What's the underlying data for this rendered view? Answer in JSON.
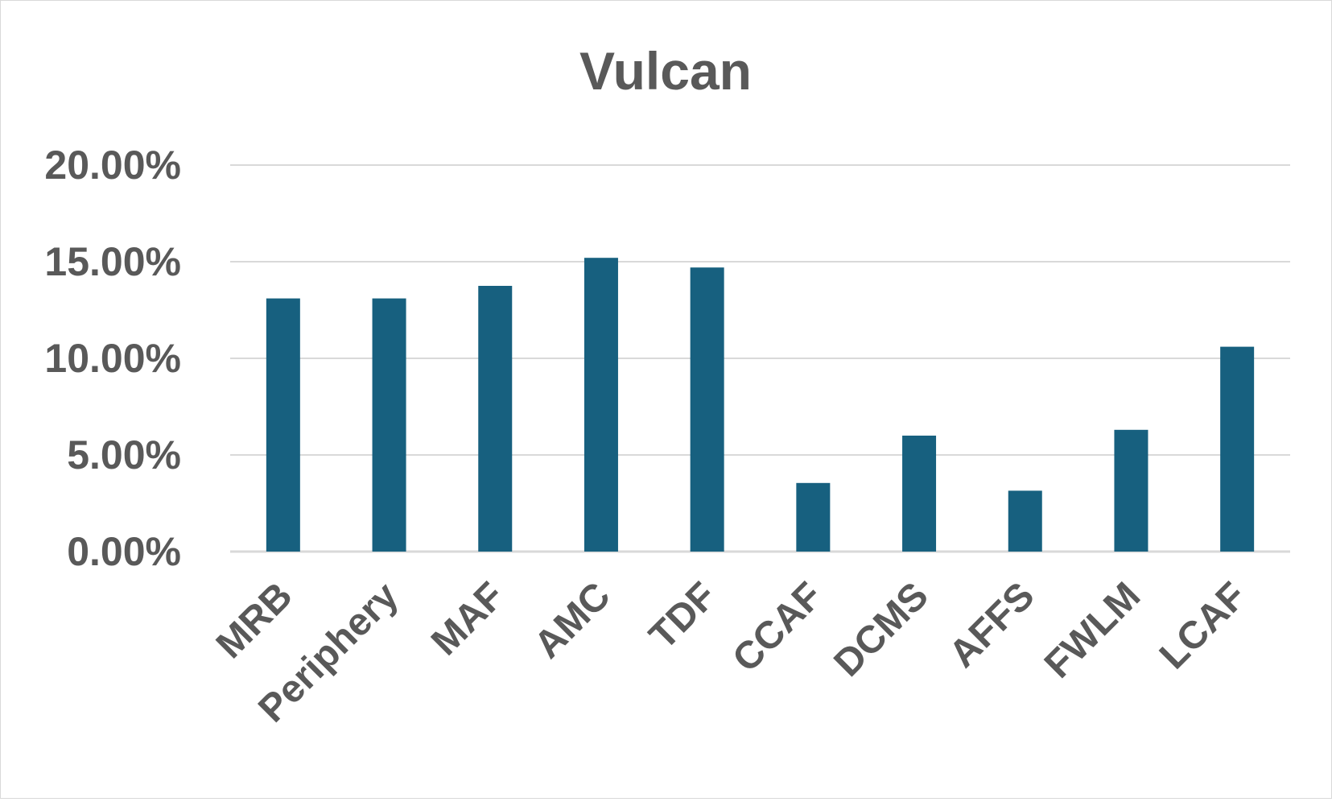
{
  "chart_data": {
    "type": "bar",
    "title": "Vulcan",
    "xlabel": "",
    "ylabel": "",
    "categories": [
      "MRB",
      "Periphery",
      "MAF",
      "AMC",
      "TDF",
      "CCAF",
      "DCMS",
      "AFFS",
      "FWLM",
      "LCAF"
    ],
    "values": [
      13.1,
      13.1,
      13.75,
      15.2,
      14.7,
      3.55,
      6.0,
      3.15,
      6.3,
      10.6
    ],
    "value_format": "percent",
    "ylim": [
      0,
      20
    ],
    "yticks": [
      "0.00%",
      "5.00%",
      "10.00%",
      "15.00%",
      "20.00%"
    ],
    "ytick_values": [
      0,
      5,
      10,
      15,
      20
    ],
    "grid": true,
    "legend": "none",
    "bar_color": "#17607f",
    "grid_color": "#d9d9d9",
    "text_color": "#595959"
  }
}
